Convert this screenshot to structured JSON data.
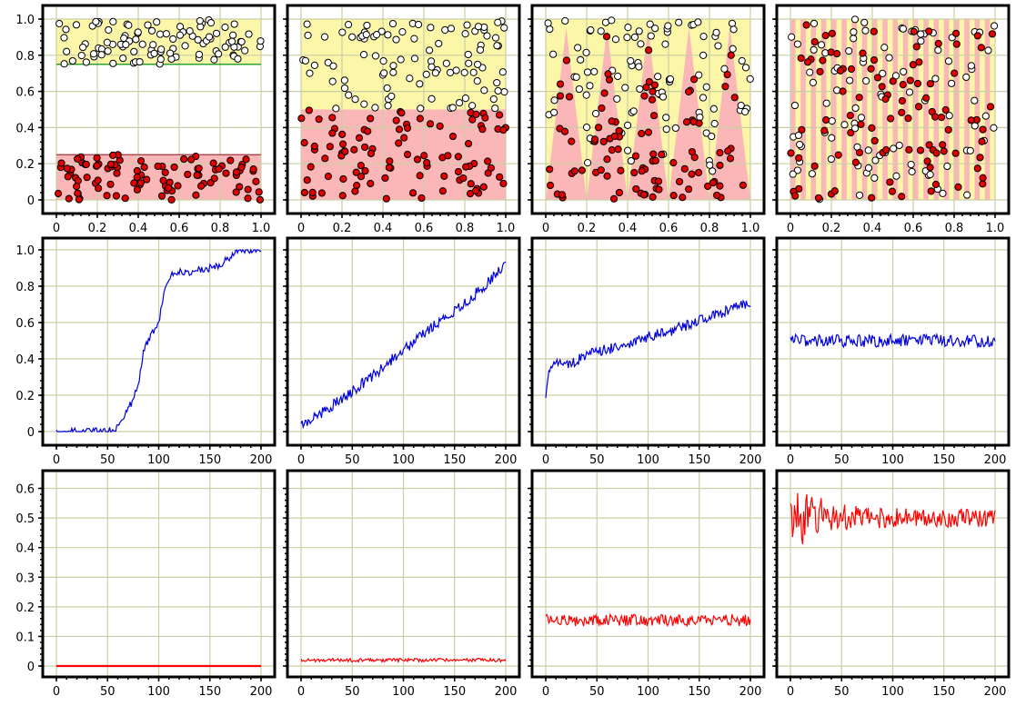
{
  "colors": {
    "top_region": "#fbf6a8",
    "bottom_region": "#fbb6b8",
    "class_a_fill": "#ffffff",
    "class_b_fill": "#e00000",
    "point_edge": "#000000",
    "boundary_line": "#2ea02c",
    "accuracy_line": "#0000dd",
    "error_line": "#ff0000",
    "grid": "#c9cfa4"
  },
  "chart_data": [
    {
      "type": "scatter",
      "panel": "row1-col1",
      "grid": true,
      "xlim": [
        0,
        1
      ],
      "ylim": [
        0,
        1
      ],
      "x_ticks": [
        "0",
        "0.2",
        "0.4",
        "0.6",
        "0.8",
        "1.0"
      ],
      "y_ticks": [
        "0",
        "0.2",
        "0.4",
        "0.6",
        "0.8",
        "1.0"
      ],
      "regions": "two bands: yellow y 0.75–1.0 (class A), pink y 0–0.25 (class B), white gap between; green boundary lines at y=0.75 and y=0.25",
      "series": [
        {
          "values": "about 100 white points, x uniform 0–1, y uniform 0.75–1.0"
        },
        {
          "values": "about 100 red points, x uniform 0–1, y uniform 0–0.25"
        }
      ]
    },
    {
      "type": "scatter",
      "panel": "row1-col2",
      "grid": true,
      "xlim": [
        0,
        1
      ],
      "ylim": [
        0,
        1
      ],
      "x_ticks": [
        "0",
        "0.2",
        "0.4",
        "0.6",
        "0.8",
        "1.0"
      ],
      "regions": "yellow y 0.5–1.0 (class A), pink y 0–0.5 (class B)",
      "series": [
        {
          "values": "about 100 white points, x uniform 0–1, y uniform 0.5–1.0"
        },
        {
          "values": "about 100 red points, x uniform 0–1, y uniform 0–0.5"
        }
      ]
    },
    {
      "type": "scatter",
      "panel": "row1-col3",
      "grid": true,
      "xlim": [
        0,
        1
      ],
      "ylim": [
        0,
        1
      ],
      "x_ticks": [
        "0",
        "0.2",
        "0.4",
        "0.6",
        "0.8",
        "1.0"
      ],
      "regions": "yellow background; five pink triangles with bases on y=0 spanning x 0–0.2, 0.2–0.4, 0.4–0.6, 0.6–0.8, 0.8–1.0, apices at y≈0.95",
      "series": [
        {
          "values": "about 100 white points in the yellow area"
        },
        {
          "values": "about 100 red points inside the pink triangles"
        }
      ]
    },
    {
      "type": "scatter",
      "panel": "row1-col4",
      "grid": true,
      "xlim": [
        0,
        1
      ],
      "ylim": [
        0,
        1
      ],
      "x_ticks": [
        "0",
        "0.2",
        "0.4",
        "0.6",
        "0.8",
        "1.0"
      ],
      "regions": "about 40 alternating vertical stripes, pink and yellow, across x 0–1",
      "series": [
        {
          "values": "about 100 white points, x and y uniform 0–1"
        },
        {
          "values": "about 100 red points, x and y uniform 0–1"
        }
      ]
    },
    {
      "type": "line",
      "panel": "row2-col1",
      "grid": true,
      "xlim": [
        0,
        200
      ],
      "ylim": [
        0,
        1
      ],
      "x_ticks": [
        "0",
        "50",
        "100",
        "150",
        "200"
      ],
      "y_ticks": [
        "0",
        "0.2",
        "0.4",
        "0.6",
        "0.8",
        "1.0"
      ],
      "series": [
        {
          "x": [
            0,
            50,
            55,
            60,
            65,
            70,
            75,
            80,
            85,
            90,
            95,
            100,
            105,
            110,
            115,
            120,
            130,
            140,
            150,
            160,
            170,
            180,
            190,
            200
          ],
          "values": [
            0,
            0,
            0.01,
            0.03,
            0.07,
            0.12,
            0.18,
            0.25,
            0.45,
            0.5,
            0.55,
            0.6,
            0.75,
            0.85,
            0.87,
            0.88,
            0.88,
            0.89,
            0.9,
            0.92,
            0.96,
            1.0,
            1.0,
            1.0
          ],
          "noise": 0.02
        }
      ]
    },
    {
      "type": "line",
      "panel": "row2-col2",
      "grid": true,
      "xlim": [
        0,
        200
      ],
      "ylim": [
        0,
        1
      ],
      "x_ticks": [
        "0",
        "50",
        "100",
        "150",
        "200"
      ],
      "series": [
        {
          "x": [
            0,
            25,
            50,
            75,
            100,
            125,
            150,
            175,
            200
          ],
          "values": [
            0.03,
            0.12,
            0.22,
            0.33,
            0.45,
            0.56,
            0.66,
            0.78,
            0.92
          ],
          "noise": 0.03
        }
      ]
    },
    {
      "type": "line",
      "panel": "row2-col3",
      "grid": true,
      "xlim": [
        0,
        200
      ],
      "ylim": [
        0,
        1
      ],
      "x_ticks": [
        "0",
        "50",
        "100",
        "150",
        "200"
      ],
      "series": [
        {
          "x": [
            0,
            3,
            6,
            10,
            20,
            30,
            50,
            75,
            100,
            125,
            150,
            175,
            200
          ],
          "values": [
            0.17,
            0.34,
            0.38,
            0.39,
            0.37,
            0.39,
            0.44,
            0.47,
            0.52,
            0.56,
            0.61,
            0.66,
            0.71
          ],
          "noise": 0.03
        }
      ]
    },
    {
      "type": "line",
      "panel": "row2-col4",
      "grid": true,
      "xlim": [
        0,
        200
      ],
      "ylim": [
        0,
        1
      ],
      "x_ticks": [
        "0",
        "50",
        "100",
        "150",
        "200"
      ],
      "series": [
        {
          "x": [
            0,
            200
          ],
          "values": [
            0.5,
            0.5
          ],
          "noise": 0.035
        }
      ]
    },
    {
      "type": "line",
      "panel": "row3-col1",
      "grid": true,
      "xlim": [
        0,
        200
      ],
      "ylim": [
        0,
        0.62
      ],
      "x_ticks": [
        "0",
        "50",
        "100",
        "150",
        "200"
      ],
      "y_ticks": [
        "0",
        "0.1",
        "0.2",
        "0.3",
        "0.4",
        "0.5",
        "0.6"
      ],
      "series": [
        {
          "x": [
            0,
            200
          ],
          "values": [
            0,
            0
          ],
          "noise": 0
        }
      ]
    },
    {
      "type": "line",
      "panel": "row3-col2",
      "grid": true,
      "xlim": [
        0,
        200
      ],
      "ylim": [
        0,
        0.62
      ],
      "x_ticks": [
        "0",
        "50",
        "100",
        "150",
        "200"
      ],
      "series": [
        {
          "x": [
            0,
            200
          ],
          "values": [
            0.02,
            0.02
          ],
          "noise": 0.006
        }
      ]
    },
    {
      "type": "line",
      "panel": "row3-col3",
      "grid": true,
      "xlim": [
        0,
        200
      ],
      "ylim": [
        0,
        0.62
      ],
      "x_ticks": [
        "0",
        "50",
        "100",
        "150",
        "200"
      ],
      "series": [
        {
          "x": [
            0,
            200
          ],
          "values": [
            0.155,
            0.155
          ],
          "noise": 0.02
        }
      ]
    },
    {
      "type": "line",
      "panel": "row3-col4",
      "grid": true,
      "xlim": [
        0,
        200
      ],
      "ylim": [
        0,
        0.62
      ],
      "x_ticks": [
        "0",
        "50",
        "100",
        "150",
        "200"
      ],
      "series": [
        {
          "x": [
            0,
            5,
            10,
            15,
            20,
            30,
            50,
            100,
            150,
            200
          ],
          "values": [
            0.5,
            0.51,
            0.5,
            0.49,
            0.5,
            0.51,
            0.5,
            0.5,
            0.5,
            0.5
          ],
          "noise_envelope": {
            "x": [
              0,
              15,
              40,
              80,
              200
            ],
            "amplitude": [
              0.07,
              0.09,
              0.05,
              0.035,
              0.03
            ]
          }
        }
      ]
    }
  ]
}
